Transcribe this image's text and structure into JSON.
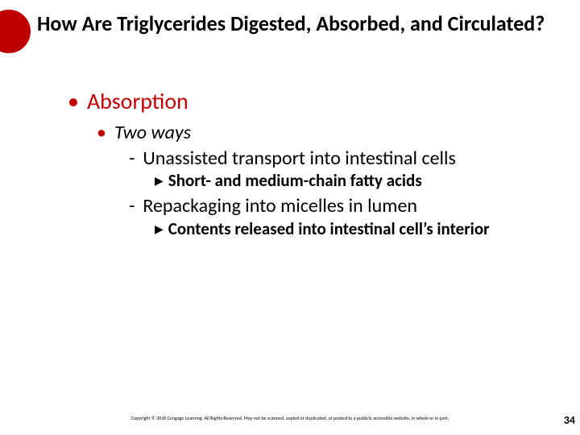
{
  "title": "How Are Triglycerides Digested, Absorbed, and Circulated?",
  "lvl1": "Absorption",
  "lvl2": "Two ways",
  "lvl3a": "Unassisted transport into intestinal cells",
  "lvl4a": "Short- and medium-chain fatty acids",
  "lvl3b": "Repackaging into micelles in lumen",
  "lvl4b": "Contents released into intestinal cell’s interior",
  "copyright": "Copyright © 2016 Cengage Learning. All Rights Reserved. May not be scanned, copied or duplicated, or posted to a publicly accessible website, in whole or in part.",
  "page": "34",
  "colors": {
    "accent": "#c00000",
    "bg": "#ffffff",
    "text": "#000000"
  }
}
